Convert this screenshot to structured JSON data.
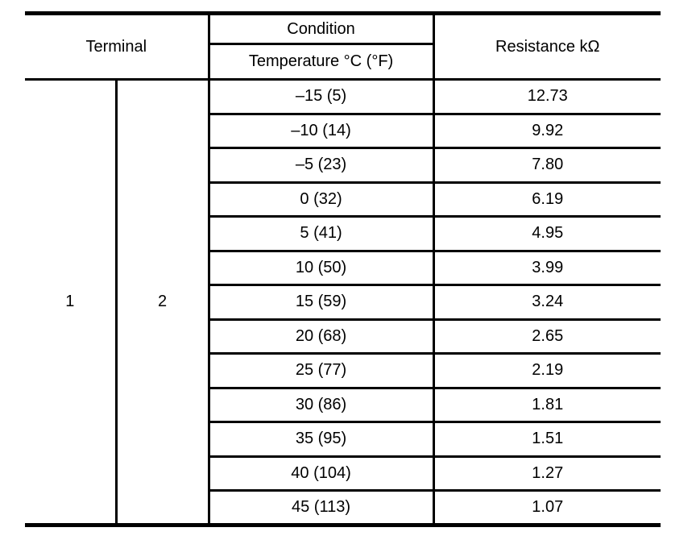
{
  "table": {
    "headers": {
      "terminal": "Terminal",
      "condition": "Condition",
      "temperature": "Temperature °C (°F)",
      "resistance": "Resistance kΩ"
    },
    "terminal_columns": [
      "1",
      "2"
    ],
    "rows": [
      {
        "temperature": "–15 (5)",
        "resistance": "12.73"
      },
      {
        "temperature": "–10 (14)",
        "resistance": "9.92"
      },
      {
        "temperature": "–5 (23)",
        "resistance": "7.80"
      },
      {
        "temperature": "0 (32)",
        "resistance": "6.19"
      },
      {
        "temperature": "5 (41)",
        "resistance": "4.95"
      },
      {
        "temperature": "10 (50)",
        "resistance": "3.99"
      },
      {
        "temperature": "15 (59)",
        "resistance": "3.24"
      },
      {
        "temperature": "20 (68)",
        "resistance": "2.65"
      },
      {
        "temperature": "25 (77)",
        "resistance": "2.19"
      },
      {
        "temperature": "30 (86)",
        "resistance": "1.81"
      },
      {
        "temperature": "35 (95)",
        "resistance": "1.51"
      },
      {
        "temperature": "40 (104)",
        "resistance": "1.27"
      },
      {
        "temperature": "45 (113)",
        "resistance": "1.07"
      }
    ],
    "colors": {
      "border": "#000000",
      "background": "#ffffff",
      "text": "#000000"
    }
  }
}
